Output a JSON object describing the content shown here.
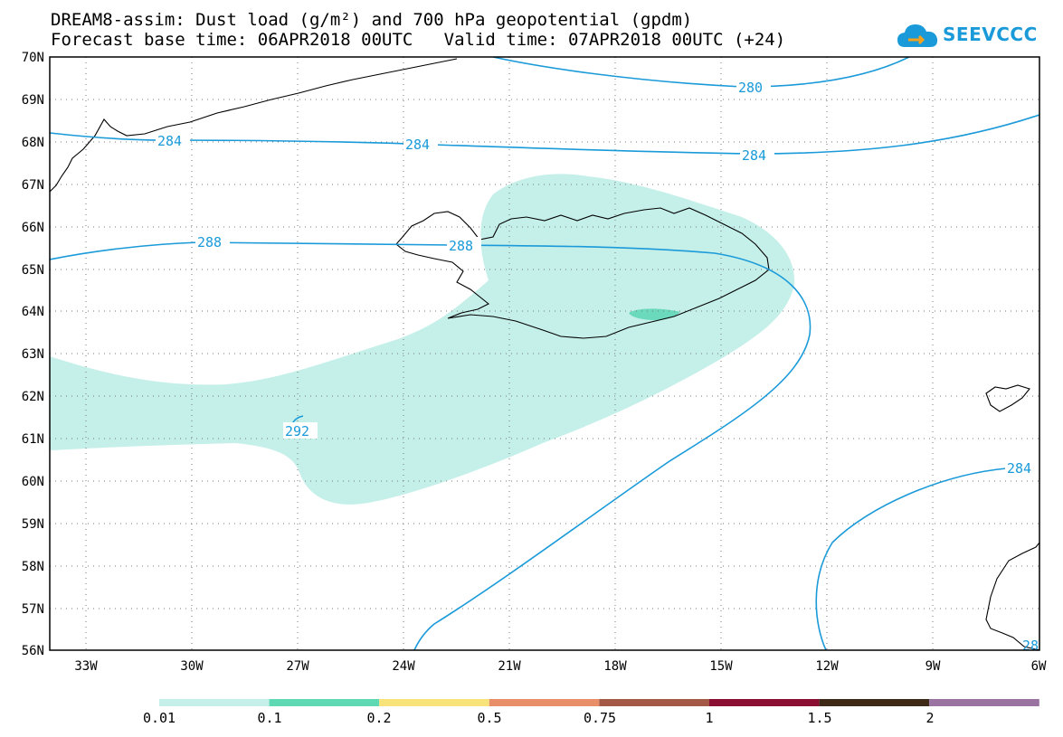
{
  "title": {
    "line1": "DREAM8-assim: Dust load (g/m²) and 700 hPa geopotential (gpdm)",
    "line2": "Forecast base time: 06APR2018 00UTC   Valid time: 07APR2018 00UTC (+24)"
  },
  "logo": {
    "text": "SEEVCCC",
    "icon": "cloud-icon",
    "color": "#1a9ad9"
  },
  "map": {
    "lat_labels": [
      "70N",
      "69N",
      "68N",
      "67N",
      "66N",
      "65N",
      "64N",
      "63N",
      "62N",
      "61N",
      "60N",
      "59N",
      "58N",
      "57N",
      "56N"
    ],
    "lon_labels": [
      "33W",
      "30W",
      "27W",
      "24W",
      "21W",
      "18W",
      "15W",
      "12W",
      "9W",
      "6W"
    ],
    "lat_range": [
      56,
      70
    ],
    "lon_range": [
      -34.2,
      -6
    ],
    "grid": "dotted"
  },
  "contours": {
    "color": "#1a9ad9",
    "labels": [
      {
        "text": "280"
      },
      {
        "text": "284"
      },
      {
        "text": "284"
      },
      {
        "text": "284"
      },
      {
        "text": "288"
      },
      {
        "text": "288"
      },
      {
        "text": "292"
      },
      {
        "text": "284"
      },
      {
        "text": "28"
      }
    ]
  },
  "dust": {
    "low_color": "#c5f0ea",
    "high_color": "#6ad9bc"
  },
  "colorbar": {
    "colors": [
      "#c5f0ea",
      "#5fd9b3",
      "#f7e37a",
      "#e88f6a",
      "#a45846",
      "#8a0f33",
      "#3e2a16",
      "#9a73a2"
    ],
    "ticks": [
      "0.01",
      "0.1",
      "0.2",
      "0.5",
      "0.75",
      "1",
      "1.5",
      "2"
    ]
  }
}
